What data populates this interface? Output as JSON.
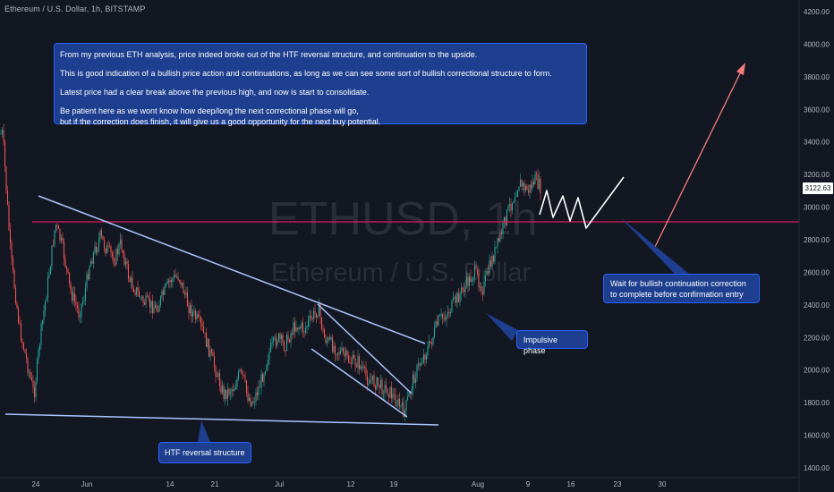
{
  "header": {
    "symbol_line": "Ethereum / U.S. Dollar, 1h, BITSTAMP"
  },
  "watermark": {
    "ticker": "ETHUSD, 1h",
    "name": "Ethereum / U.S. Dollar"
  },
  "notes": {
    "analysis": [
      "From my previous ETH analysis, price indeed broke out of the HTF reversal structure, and continuation to the upside.",
      "This is good indication of a bullish price action and continuations, as long as we can see some sort of bullish correctional structure to form.",
      "Latest price had a clear break above the previous high, and now is start to consolidate.",
      "Be patient here as we wont know how deep/long the next correctional phase will go,",
      "but if the correction does finish, it will give us a good opportunity for the next buy potential."
    ],
    "wait_line1": "Wait for bullish continuation correction",
    "wait_line2": "to complete before confirmation entry",
    "impulsive": "Impulsive phase",
    "htf": "HTF reversal structure"
  },
  "price_axis": {
    "labels": [
      "4200.00",
      "4000.00",
      "3800.00",
      "3600.00",
      "3400.00",
      "3200.00",
      "3000.00",
      "2800.00",
      "2600.00",
      "2400.00",
      "2200.00",
      "2000.00",
      "1800.00",
      "1600.00",
      "1400.00"
    ],
    "last_price": "3122.63"
  },
  "time_axis": {
    "labels": [
      "24",
      "Jun",
      "14",
      "21",
      "Jul",
      "12",
      "19",
      "Aug",
      "9",
      "16",
      "23",
      "30"
    ]
  },
  "colors": {
    "background": "#131722",
    "bull": "#26a69a",
    "bear": "#ef5350",
    "resistance": "#e0195a",
    "trendline": "#a9c5ff",
    "note_fill": "#1e3f8f",
    "note_border": "#2962ff"
  },
  "chart_data": {
    "type": "candlestick",
    "symbol": "Ethereum / U.S. Dollar, 1h, BITSTAMP",
    "y_ticks": [
      4200,
      4000,
      3800,
      3600,
      3400,
      3200,
      3000,
      2800,
      2600,
      2400,
      2200,
      2000,
      1800,
      1600,
      1400
    ],
    "ylim": [
      1350,
      4260
    ],
    "x_ticks": [
      "24",
      "Jun",
      "14",
      "21",
      "Jul",
      "12",
      "19",
      "Aug",
      "9",
      "16",
      "23",
      "30"
    ],
    "last_price": 3122.63,
    "resistance_level": 2910,
    "price_path": [
      {
        "t": "May 20",
        "p": 3450
      },
      {
        "t": "May 21",
        "p": 2700
      },
      {
        "t": "May 22",
        "p": 2250
      },
      {
        "t": "May 23",
        "p": 1850
      },
      {
        "t": "May 24",
        "p": 2200
      },
      {
        "t": "May 25",
        "p": 2600
      },
      {
        "t": "May 26",
        "p": 2900
      },
      {
        "t": "May 27",
        "p": 2750
      },
      {
        "t": "May 28",
        "p": 2500
      },
      {
        "t": "May 29",
        "p": 2350
      },
      {
        "t": "May 30",
        "p": 2450
      },
      {
        "t": "Jun 1",
        "p": 2650
      },
      {
        "t": "Jun 3",
        "p": 2820
      },
      {
        "t": "Jun 4",
        "p": 2750
      },
      {
        "t": "Jun 6",
        "p": 2680
      },
      {
        "t": "Jun 7",
        "p": 2780
      },
      {
        "t": "Jun 8",
        "p": 2550
      },
      {
        "t": "Jun 10",
        "p": 2420
      },
      {
        "t": "Jun 12",
        "p": 2380
      },
      {
        "t": "Jun 14",
        "p": 2550
      },
      {
        "t": "Jun 15",
        "p": 2580
      },
      {
        "t": "Jun 17",
        "p": 2400
      },
      {
        "t": "Jun 19",
        "p": 2260
      },
      {
        "t": "Jun 20",
        "p": 2150
      },
      {
        "t": "Jun 21",
        "p": 1850
      },
      {
        "t": "Jun 22",
        "p": 1900
      },
      {
        "t": "Jun 23",
        "p": 1980
      },
      {
        "t": "Jun 24",
        "p": 1950
      },
      {
        "t": "Jun 25",
        "p": 1850
      },
      {
        "t": "Jun 26",
        "p": 1800
      },
      {
        "t": "Jun 27",
        "p": 1900
      },
      {
        "t": "Jun 28",
        "p": 2100
      },
      {
        "t": "Jun 30",
        "p": 2200
      },
      {
        "t": "Jul 1",
        "p": 2150
      },
      {
        "t": "Jul 3",
        "p": 2280
      },
      {
        "t": "Jul 5",
        "p": 2250
      },
      {
        "t": "Jul 7",
        "p": 2380
      },
      {
        "t": "Jul 8",
        "p": 2200
      },
      {
        "t": "Jul 10",
        "p": 2150
      },
      {
        "t": "Jul 12",
        "p": 2050
      },
      {
        "t": "Jul 14",
        "p": 2050
      },
      {
        "t": "Jul 15",
        "p": 1950
      },
      {
        "t": "Jul 17",
        "p": 1920
      },
      {
        "t": "Jul 19",
        "p": 1870
      },
      {
        "t": "Jul 20",
        "p": 1740
      },
      {
        "t": "Jul 21",
        "p": 1950
      },
      {
        "t": "Jul 23",
        "p": 2050
      },
      {
        "t": "Jul 24",
        "p": 2150
      },
      {
        "t": "Jul 26",
        "p": 2300
      },
      {
        "t": "Jul 28",
        "p": 2350
      },
      {
        "t": "Jul 30",
        "p": 2450
      },
      {
        "t": "Aug 1",
        "p": 2550
      },
      {
        "t": "Aug 2",
        "p": 2600
      },
      {
        "t": "Aug 3",
        "p": 2500
      },
      {
        "t": "Aug 4",
        "p": 2650
      },
      {
        "t": "Aug 5",
        "p": 2800
      },
      {
        "t": "Aug 6",
        "p": 2950
      },
      {
        "t": "Aug 7",
        "p": 3150
      },
      {
        "t": "Aug 8",
        "p": 3100
      },
      {
        "t": "Aug 9",
        "p": 3170
      },
      {
        "t": "Aug 10",
        "p": 3120
      }
    ],
    "annotations": [
      "Impulsive phase",
      "HTF reversal structure",
      "Wait for bullish continuation correction to complete before confirmation entry"
    ]
  }
}
